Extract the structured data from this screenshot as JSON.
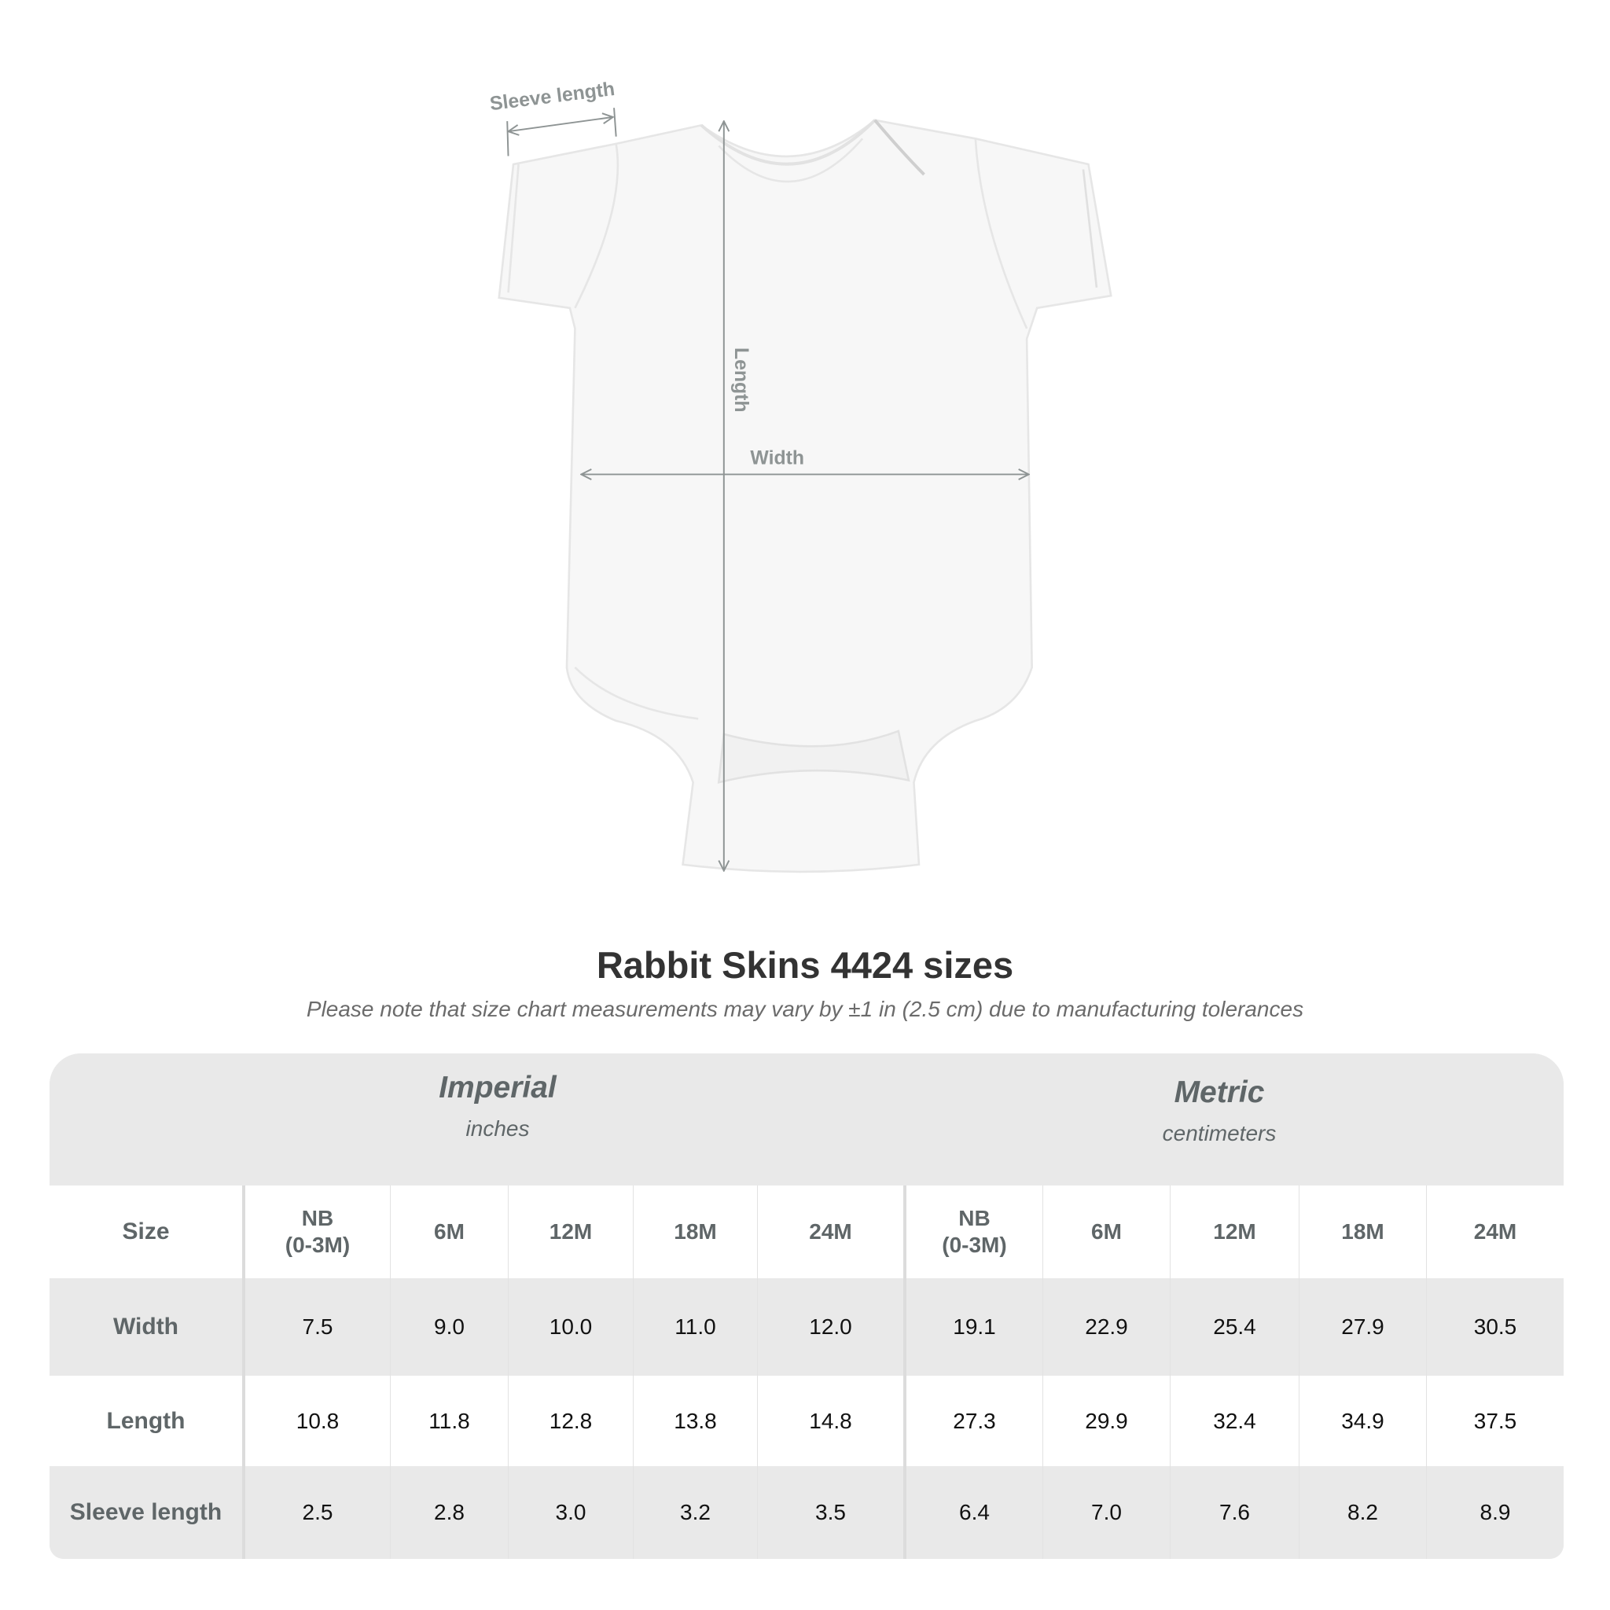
{
  "diagram": {
    "labels": {
      "sleeve": "Sleeve length",
      "length": "Length",
      "width": "Width"
    },
    "garment_color": "#f7f7f7",
    "arrow_color": "#8e9494"
  },
  "title": "Rabbit Skins 4424 sizes",
  "subtitle": "Please note that size chart measurements may vary by ±1 in (2.5 cm) due to manufacturing tolerances",
  "table": {
    "imperial": {
      "name": "Imperial",
      "unit": "inches"
    },
    "metric": {
      "name": "Metric",
      "unit": "centimeters"
    },
    "size_label": "Size",
    "sizes": [
      "NB\n(0-3M)",
      "6M",
      "12M",
      "18M",
      "24M"
    ],
    "rows": [
      {
        "label": "Width",
        "imperial": [
          "7.5",
          "9.0",
          "10.0",
          "11.0",
          "12.0"
        ],
        "metric": [
          "19.1",
          "22.9",
          "25.4",
          "27.9",
          "30.5"
        ]
      },
      {
        "label": "Length",
        "imperial": [
          "10.8",
          "11.8",
          "12.8",
          "13.8",
          "14.8"
        ],
        "metric": [
          "27.3",
          "29.9",
          "32.4",
          "34.9",
          "37.5"
        ]
      },
      {
        "label": "Sleeve length",
        "imperial": [
          "2.5",
          "2.8",
          "3.0",
          "3.2",
          "3.5"
        ],
        "metric": [
          "6.4",
          "7.0",
          "7.6",
          "8.2",
          "8.9"
        ]
      }
    ]
  }
}
